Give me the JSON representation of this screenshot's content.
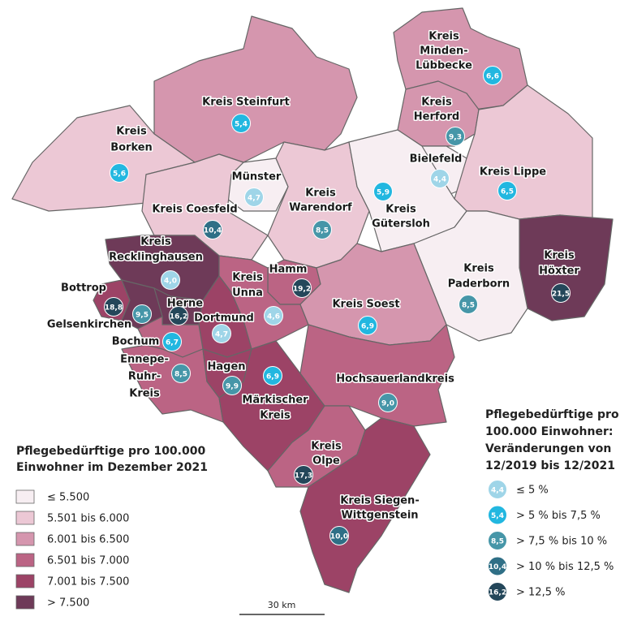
{
  "legend_density": {
    "title": [
      "Pflegebedürftige pro 100.000",
      "Einwohner im Dezember 2021"
    ],
    "items": [
      {
        "label": "≤ 5.500",
        "color": "#f7eef2"
      },
      {
        "label": "5.501 bis 6.000",
        "color": "#ecc8d5"
      },
      {
        "label": "6.001 bis 6.500",
        "color": "#d596ae"
      },
      {
        "label": "6.501 bis 7.000",
        "color": "#bb6484"
      },
      {
        "label": "7.001 bis 7.500",
        "color": "#9c4366"
      },
      {
        "label": "> 7.500",
        "color": "#6e3a58"
      }
    ]
  },
  "legend_change": {
    "title": [
      "Pflegebedürftige pro",
      "100.000 Einwohner:",
      "Veränderungen von",
      "12/2019 bis 12/2021"
    ],
    "items": [
      {
        "sample": "4,4",
        "label": "≤ 5 %",
        "color": "#9fd5e8"
      },
      {
        "sample": "5,4",
        "label": "> 5 % bis 7,5 %",
        "color": "#22b7e0"
      },
      {
        "sample": "8,5",
        "label": "> 7,5 % bis 10 %",
        "color": "#4696a8"
      },
      {
        "sample": "10,4",
        "label": "> 10 % bis 12,5 %",
        "color": "#2f6f86"
      },
      {
        "sample": "16,2",
        "label": "> 12,5 %",
        "color": "#24475a"
      }
    ]
  },
  "scale": "30 km",
  "regions": [
    {
      "name": [
        "Kreis",
        "Minden-",
        "Lübbecke"
      ],
      "fill": 2,
      "change": "6,6",
      "change_class": 1
    },
    {
      "name": [
        "Kreis Steinfurt"
      ],
      "fill": 2,
      "change": "5,4",
      "change_class": 1
    },
    {
      "name": [
        "Kreis",
        "Borken"
      ],
      "fill": 1,
      "change": "5,6",
      "change_class": 1
    },
    {
      "name": [
        "Kreis",
        "Herford"
      ],
      "fill": 2,
      "change": "9,3",
      "change_class": 2
    },
    {
      "name": [
        "Bielefeld"
      ],
      "fill": 0,
      "change": "4,4",
      "change_class": 0
    },
    {
      "name": [
        "Kreis Lippe"
      ],
      "fill": 1,
      "change": "6,5",
      "change_class": 1
    },
    {
      "name": [
        "Münster"
      ],
      "fill": 0,
      "change": "4,7",
      "change_class": 0
    },
    {
      "name": [
        "Kreis Coesfeld"
      ],
      "fill": 1,
      "change": "10,4",
      "change_class": 3
    },
    {
      "name": [
        "Kreis",
        "Warendorf"
      ],
      "fill": 1,
      "change": "8,5",
      "change_class": 2
    },
    {
      "name": [
        "Kreis",
        "Gütersloh"
      ],
      "fill": 0,
      "change": "5,9",
      "change_class": 1
    },
    {
      "name": [
        "Kreis",
        "Recklinghausen"
      ],
      "fill": 5,
      "change": "4,0",
      "change_class": 0
    },
    {
      "name": [
        "Kreis",
        "Höxter"
      ],
      "fill": 5,
      "change": "21,5",
      "change_class": 4
    },
    {
      "name": [
        "Kreis",
        "Paderborn"
      ],
      "fill": 0,
      "change": "8,5",
      "change_class": 2
    },
    {
      "name": [
        "Hamm"
      ],
      "fill": 3,
      "change": "19,2",
      "change_class": 4
    },
    {
      "name": [
        "Kreis",
        "Unna"
      ],
      "fill": 3,
      "change": "4,6",
      "change_class": 0
    },
    {
      "name": [
        "Bottrop"
      ],
      "fill": 4,
      "change": "18,8",
      "change_class": 4
    },
    {
      "name": [
        "Herne"
      ],
      "fill": 5,
      "change": "16,2",
      "change_class": 4
    },
    {
      "name": [
        "Gelsenkirchen"
      ],
      "fill": 5,
      "change": "9,5",
      "change_class": 2
    },
    {
      "name": [
        "Dortmund"
      ],
      "fill": 4,
      "change": "4,7",
      "change_class": 0
    },
    {
      "name": [
        "Kreis Soest"
      ],
      "fill": 2,
      "change": "6,9",
      "change_class": 1
    },
    {
      "name": [
        "Bochum"
      ],
      "fill": 3,
      "change": "6,7",
      "change_class": 1
    },
    {
      "name": [
        "Ennepe-",
        "Ruhr-",
        "Kreis"
      ],
      "fill": 3,
      "change": "8,5",
      "change_class": 2
    },
    {
      "name": [
        "Hagen"
      ],
      "fill": 4,
      "change": "9,9",
      "change_class": 2
    },
    {
      "name": [
        "Märkischer",
        "Kreis"
      ],
      "fill": 4,
      "change": "6,9",
      "change_class": 1
    },
    {
      "name": [
        "Hochsauerlandkreis"
      ],
      "fill": 3,
      "change": "9,0",
      "change_class": 2
    },
    {
      "name": [
        "Kreis",
        "Olpe"
      ],
      "fill": 3,
      "change": "17,3",
      "change_class": 4
    },
    {
      "name": [
        "Kreis Siegen-",
        "Wittgenstein"
      ],
      "fill": 4,
      "change": "10,0",
      "change_class": 3
    }
  ]
}
